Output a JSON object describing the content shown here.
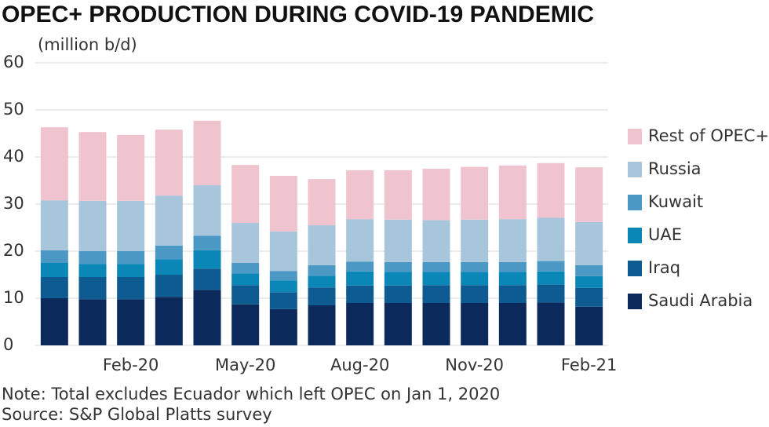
{
  "chart_data": {
    "type": "stacked_bar",
    "title": "OPEC+ PRODUCTION DURING COVID-19 PANDEMIC",
    "y_label": "(million b/d)",
    "notes": [
      "Note: Total excludes Ecuador which left OPEC on Jan 1, 2020",
      "Source: S&P Global Platts survey"
    ],
    "categories": [
      null,
      null,
      "Feb-20",
      null,
      null,
      "May-20",
      null,
      null,
      "Aug-20",
      null,
      null,
      "Nov-20",
      null,
      null,
      "Feb-21"
    ],
    "series": [
      {
        "name": "Saudi Arabia",
        "color": "#0b2a5b",
        "values": [
          10,
          9.8,
          9.8,
          10.3,
          11.8,
          8.7,
          7.7,
          8.5,
          9,
          9,
          9,
          9,
          9,
          9.1,
          8.2
        ]
      },
      {
        "name": "Iraq",
        "color": "#0e5b92",
        "values": [
          4.5,
          4.7,
          4.7,
          4.7,
          4.5,
          4.1,
          3.6,
          3.8,
          3.7,
          3.7,
          3.8,
          3.8,
          3.8,
          3.8,
          4
        ]
      },
      {
        "name": "UAE",
        "color": "#0a86b7",
        "values": [
          3,
          2.8,
          2.8,
          3.3,
          3.9,
          2.5,
          2.5,
          2.5,
          3,
          2.9,
          2.8,
          2.8,
          2.8,
          2.8,
          2.5
        ]
      },
      {
        "name": "Kuwait",
        "color": "#4b98c5",
        "values": [
          2.7,
          2.7,
          2.7,
          2.9,
          3.1,
          2.2,
          2,
          2.2,
          2.1,
          2.1,
          2.1,
          2.1,
          2.1,
          2.2,
          2.3
        ]
      },
      {
        "name": "Russia",
        "color": "#a7c6dc",
        "values": [
          10.6,
          10.7,
          10.7,
          10.6,
          10.7,
          8.5,
          8.4,
          8.5,
          9,
          9,
          8.9,
          9,
          9.1,
          9.2,
          9.2
        ]
      },
      {
        "name": "Rest of OPEC+",
        "color": "#f0c4cf",
        "values": [
          15.5,
          14.6,
          14,
          14,
          13.7,
          12.3,
          11.8,
          9.8,
          10.4,
          10.5,
          10.9,
          11.2,
          11.4,
          11.6,
          11.6
        ]
      }
    ],
    "ylim": [
      0,
      60
    ],
    "yticks": [
      0,
      10,
      20,
      30,
      40,
      50,
      60
    ],
    "grid": true,
    "legend": "right"
  }
}
